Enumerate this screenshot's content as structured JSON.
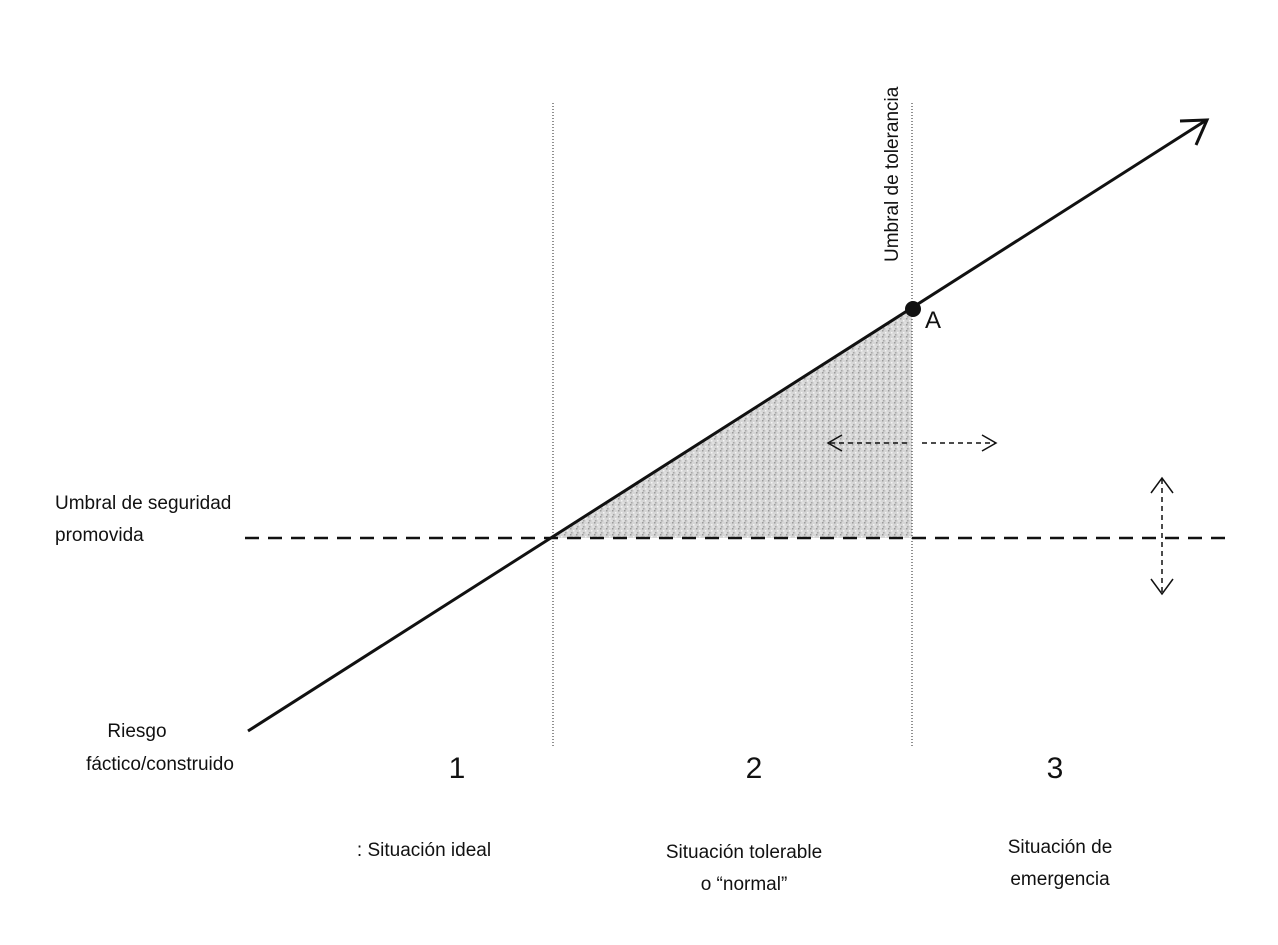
{
  "diagram": {
    "colors": {
      "ink": "#111111",
      "shade": "#c8c8c8"
    },
    "labels": {
      "tolerance_threshold": "Umbral de tolerancia",
      "safety_threshold_line1": "Umbral de seguridad",
      "safety_threshold_line2": "promovida",
      "risk_line1": "Riesgo",
      "risk_line2": "fáctico/construido",
      "point_a": "A"
    },
    "zones": [
      {
        "number": "1",
        "name_line1": ": Situación  ideal",
        "name_line2": ""
      },
      {
        "number": "2",
        "name_line1": "Situación  tolerable",
        "name_line2": "o “normal”"
      },
      {
        "number": "3",
        "name_line1": "Situación   de",
        "name_line2": "emergencia"
      }
    ]
  }
}
